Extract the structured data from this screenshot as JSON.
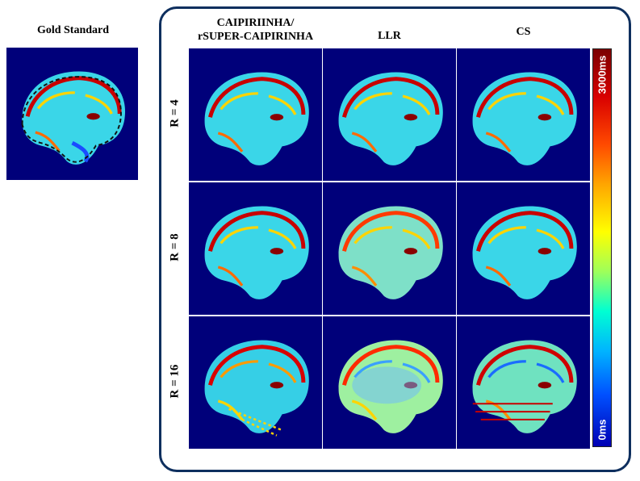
{
  "gold_standard": {
    "title": "Gold Standard"
  },
  "columns": [
    {
      "line1": "CAIPIRIINHA/",
      "line2": "rSUPER-CAIPIRINHA"
    },
    {
      "line1": "LLR",
      "line2": ""
    },
    {
      "line1": "CS",
      "line2": ""
    }
  ],
  "rows": [
    {
      "label": "R = 4"
    },
    {
      "label": "R = 8"
    },
    {
      "label": "R = 16"
    }
  ],
  "colorbar": {
    "max_label": "3000ms",
    "min_label": "0ms",
    "colormap": "jet",
    "range_ms": [
      0,
      3000
    ]
  },
  "colors": {
    "frame_border": "#0e2f5e",
    "background_dark_blue": "#00007a",
    "brain_cyan": "#3ad6e8",
    "brain_red": "#c80000"
  },
  "panels": [
    {
      "row": "R = 4",
      "method": "CAIPIRIINHA/rSUPER-CAIPIRINHA",
      "appearance": "sharp"
    },
    {
      "row": "R = 4",
      "method": "LLR",
      "appearance": "sharp"
    },
    {
      "row": "R = 4",
      "method": "CS",
      "appearance": "sharp"
    },
    {
      "row": "R = 8",
      "method": "CAIPIRIINHA/rSUPER-CAIPIRINHA",
      "appearance": "sharp"
    },
    {
      "row": "R = 8",
      "method": "LLR",
      "appearance": "smoothed"
    },
    {
      "row": "R = 8",
      "method": "CS",
      "appearance": "sharp"
    },
    {
      "row": "R = 16",
      "method": "CAIPIRIINHA/rSUPER-CAIPIRINHA",
      "appearance": "noisy"
    },
    {
      "row": "R = 16",
      "method": "LLR",
      "appearance": "blurred"
    },
    {
      "row": "R = 16",
      "method": "CS",
      "appearance": "artifacts"
    }
  ]
}
